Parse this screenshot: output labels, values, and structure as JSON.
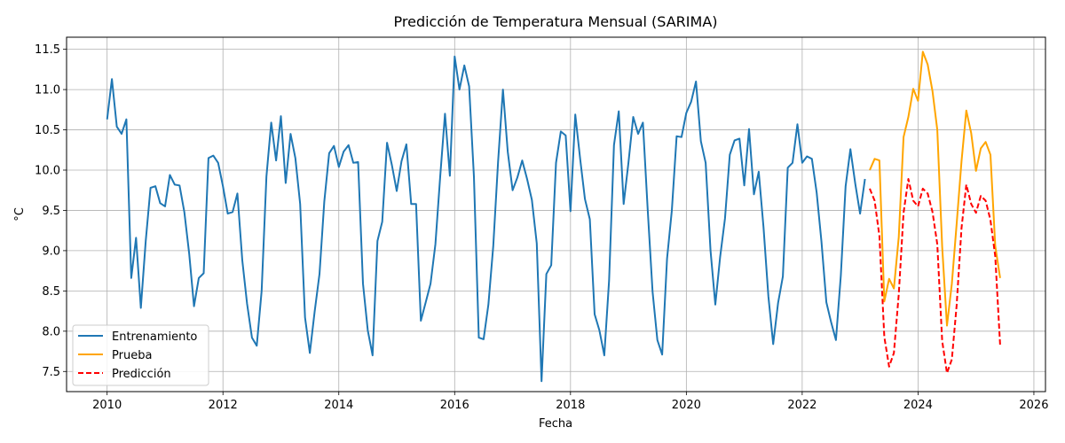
{
  "chart_data": {
    "type": "line",
    "title": "Predicción de Temperatura Mensual (SARIMA)",
    "xlabel": "Fecha",
    "ylabel": "°C",
    "xlim": [
      2009.3,
      2026.2
    ],
    "ylim": [
      7.25,
      11.65
    ],
    "xticks": [
      2010,
      2012,
      2014,
      2016,
      2018,
      2020,
      2022,
      2024,
      2026
    ],
    "yticks": [
      7.5,
      8.0,
      8.5,
      9.0,
      9.5,
      10.0,
      10.5,
      11.0,
      11.5
    ],
    "xtick_labels": [
      "2010",
      "2012",
      "2014",
      "2016",
      "2018",
      "2020",
      "2022",
      "2024",
      "2026"
    ],
    "ytick_labels": [
      "7.5",
      "8.0",
      "8.5",
      "9.0",
      "9.5",
      "10.0",
      "10.5",
      "11.0",
      "11.5"
    ],
    "grid": true,
    "legend_position": "lower-left",
    "series": [
      {
        "name": "Entrenamiento",
        "color": "#1f77b4",
        "style": "solid",
        "x": [
          2010.0,
          2010.083,
          2010.167,
          2010.25,
          2010.333,
          2010.417,
          2010.5,
          2010.583,
          2010.667,
          2010.75,
          2010.833,
          2010.917,
          2011.0,
          2011.083,
          2011.167,
          2011.25,
          2011.333,
          2011.417,
          2011.5,
          2011.583,
          2011.667,
          2011.75,
          2011.833,
          2011.917,
          2012.0,
          2012.083,
          2012.167,
          2012.25,
          2012.333,
          2012.417,
          2012.5,
          2012.583,
          2012.667,
          2012.75,
          2012.833,
          2012.917,
          2013.0,
          2013.083,
          2013.167,
          2013.25,
          2013.333,
          2013.417,
          2013.5,
          2013.583,
          2013.667,
          2013.75,
          2013.833,
          2013.917,
          2014.0,
          2014.083,
          2014.167,
          2014.25,
          2014.333,
          2014.417,
          2014.5,
          2014.583,
          2014.667,
          2014.75,
          2014.833,
          2014.917,
          2015.0,
          2015.083,
          2015.167,
          2015.25,
          2015.333,
          2015.417,
          2015.5,
          2015.583,
          2015.667,
          2015.75,
          2015.833,
          2015.917,
          2016.0,
          2016.083,
          2016.167,
          2016.25,
          2016.333,
          2016.417,
          2016.5,
          2016.583,
          2016.667,
          2016.75,
          2016.833,
          2016.917,
          2017.0,
          2017.083,
          2017.167,
          2017.25,
          2017.333,
          2017.417,
          2017.5,
          2017.583,
          2017.667,
          2017.75,
          2017.833,
          2017.917,
          2018.0,
          2018.083,
          2018.167,
          2018.25,
          2018.333,
          2018.417,
          2018.5,
          2018.583,
          2018.667,
          2018.75,
          2018.833,
          2018.917,
          2019.0,
          2019.083,
          2019.167,
          2019.25,
          2019.333,
          2019.417,
          2019.5,
          2019.583,
          2019.667,
          2019.75,
          2019.833,
          2019.917,
          2020.0,
          2020.083,
          2020.167,
          2020.25,
          2020.333,
          2020.417,
          2020.5,
          2020.583,
          2020.667,
          2020.75,
          2020.833,
          2020.917,
          2021.0,
          2021.083,
          2021.167,
          2021.25,
          2021.333,
          2021.417,
          2021.5,
          2021.583,
          2021.667,
          2021.75,
          2021.833,
          2021.917,
          2022.0,
          2022.083,
          2022.167,
          2022.25,
          2022.333,
          2022.417,
          2022.5,
          2022.583,
          2022.667,
          2022.75,
          2022.833,
          2022.917,
          2023.0,
          2023.083
        ],
        "values": [
          10.63,
          11.13,
          10.54,
          10.45,
          10.63,
          8.66,
          9.16,
          8.29,
          9.12,
          9.78,
          9.8,
          9.59,
          9.55,
          9.94,
          9.82,
          9.81,
          9.48,
          8.96,
          8.31,
          8.66,
          8.72,
          10.15,
          10.18,
          10.09,
          9.8,
          9.46,
          9.48,
          9.71,
          8.88,
          8.34,
          7.92,
          7.82,
          8.5,
          9.92,
          10.59,
          10.12,
          10.67,
          9.84,
          10.45,
          10.15,
          9.58,
          8.17,
          7.73,
          8.24,
          8.71,
          9.61,
          10.21,
          10.3,
          10.04,
          10.23,
          10.31,
          10.09,
          10.1,
          8.59,
          8.01,
          7.7,
          9.12,
          9.36,
          10.34,
          10.06,
          9.74,
          10.11,
          10.32,
          9.58,
          9.58,
          8.13,
          8.36,
          8.59,
          9.08,
          9.92,
          10.7,
          9.93,
          11.41,
          11.0,
          11.3,
          11.04,
          9.92,
          7.92,
          7.9,
          8.33,
          9.06,
          10.1,
          11.0,
          10.23,
          9.75,
          9.91,
          10.12,
          9.89,
          9.63,
          9.09,
          7.38,
          8.71,
          8.82,
          10.09,
          10.48,
          10.43,
          9.49,
          10.69,
          10.14,
          9.64,
          9.39,
          8.21,
          8.01,
          7.7,
          8.63,
          10.31,
          10.73,
          9.58,
          10.09,
          10.66,
          10.45,
          10.59,
          9.51,
          8.49,
          7.89,
          7.71,
          8.9,
          9.5,
          10.42,
          10.41,
          10.71,
          10.85,
          11.1,
          10.36,
          10.09,
          9.0,
          8.33,
          8.92,
          9.4,
          10.19,
          10.37,
          10.39,
          9.81,
          10.51,
          9.7,
          9.98,
          9.29,
          8.43,
          7.84,
          8.35,
          8.68,
          10.03,
          10.09,
          10.57,
          10.09,
          10.17,
          10.14,
          9.72,
          9.11,
          8.36,
          8.11,
          7.89,
          8.69,
          9.8,
          10.26,
          9.83,
          9.46,
          9.89
        ]
      },
      {
        "name": "Prueba",
        "color": "#ffa500",
        "style": "solid",
        "x": [
          2023.167,
          2023.25,
          2023.333,
          2023.417,
          2023.5,
          2023.583,
          2023.667,
          2023.75,
          2023.833,
          2023.917,
          2024.0,
          2024.083,
          2024.167,
          2024.25,
          2024.333,
          2024.417,
          2024.5,
          2024.583,
          2024.667,
          2024.75,
          2024.833,
          2024.917,
          2025.0,
          2025.083,
          2025.167,
          2025.25,
          2025.333,
          2025.417
        ],
        "values": [
          10.0,
          10.14,
          10.12,
          8.37,
          8.65,
          8.53,
          9.17,
          10.41,
          10.66,
          11.01,
          10.86,
          11.47,
          11.31,
          10.98,
          10.5,
          9.05,
          8.07,
          8.59,
          9.33,
          10.11,
          10.74,
          10.46,
          9.99,
          10.27,
          10.35,
          10.19,
          9.06,
          8.66
        ]
      },
      {
        "name": "Predicción",
        "color": "#ff0000",
        "style": "dashed",
        "x": [
          2023.167,
          2023.25,
          2023.333,
          2023.417,
          2023.5,
          2023.583,
          2023.667,
          2023.75,
          2023.833,
          2023.917,
          2024.0,
          2024.083,
          2024.167,
          2024.25,
          2024.333,
          2024.417,
          2024.5,
          2024.583,
          2024.667,
          2024.75,
          2024.833,
          2024.917,
          2025.0,
          2025.083,
          2025.167,
          2025.25,
          2025.333,
          2025.417
        ],
        "values": [
          9.77,
          9.62,
          9.18,
          7.93,
          7.56,
          7.73,
          8.46,
          9.47,
          9.89,
          9.62,
          9.55,
          9.77,
          9.71,
          9.48,
          9.08,
          7.88,
          7.48,
          7.65,
          8.32,
          9.28,
          9.82,
          9.58,
          9.47,
          9.68,
          9.62,
          9.38,
          8.93,
          7.83
        ]
      }
    ]
  }
}
